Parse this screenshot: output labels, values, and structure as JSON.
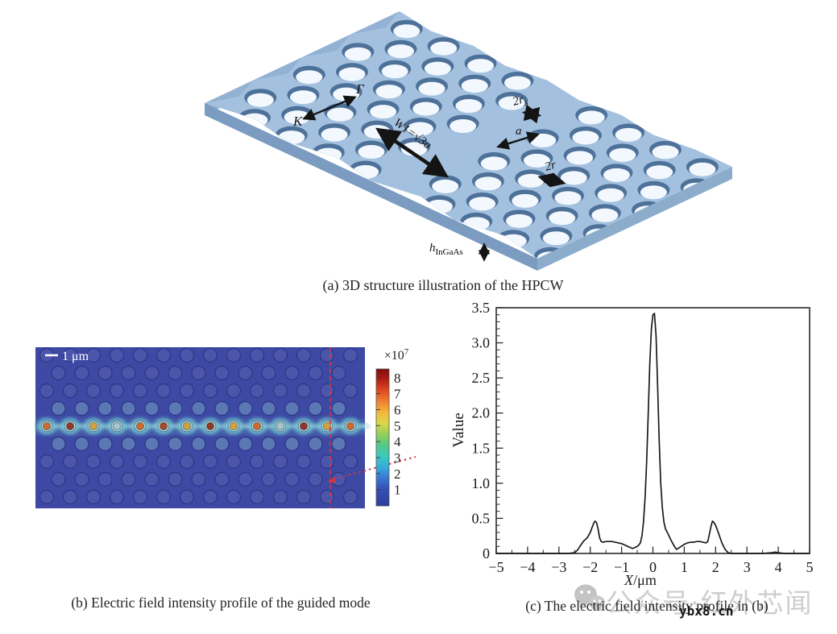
{
  "figure": {
    "panel_a": {
      "caption": "(a) 3D structure illustration of the HPCW",
      "slab_color": "#a3c1df",
      "labels": {
        "k": "K",
        "gamma": "Γ",
        "w1": "W1=√3a",
        "rs_main": "2r",
        "rs_sub": "s",
        "a": "a",
        "two_r": "2r",
        "h_main": "h",
        "h_sub": "InGaAs"
      }
    },
    "panel_b": {
      "caption": "(b) Electric field intensity profile of the guided mode",
      "scalebar_label": "1 μm",
      "colorbar": {
        "multiplier_base": "×10",
        "multiplier_exp": "7",
        "ticks": [
          "8",
          "7",
          "6",
          "5",
          "4",
          "3",
          "2",
          "1"
        ]
      }
    },
    "panel_c": {
      "caption": "(c) The electric field intensity profile in (b)"
    }
  },
  "watermark": {
    "account_text": "公众号·红外芯闻",
    "site_text": "ybx8.cn"
  },
  "chart_data": {
    "type": "line",
    "title": "",
    "xlabel_italic": "X",
    "xlabel_rest": "/μm",
    "ylabel": "Value",
    "xlim": [
      -5,
      5
    ],
    "ylim": [
      0,
      3.5
    ],
    "x_tick_values": [
      -5,
      -4,
      -3,
      -2,
      -1,
      0,
      1,
      2,
      3,
      4,
      5
    ],
    "x_tick_labels": [
      "−5",
      "−4",
      "−3",
      "−2",
      "−1",
      "0",
      "1",
      "2",
      "3",
      "4",
      "5"
    ],
    "x_minor_step": 0.5,
    "y_tick_values": [
      0,
      0.5,
      1,
      1.5,
      2,
      2.5,
      3,
      3.5
    ],
    "y_tick_labels": [
      "0",
      "0.5",
      "1.0",
      "1.5",
      "2.0",
      "2.5",
      "3.0",
      "3.5"
    ],
    "y_minor_step": 0.1,
    "grid": false,
    "legend": false,
    "series": [
      {
        "name": "electric field intensity profile",
        "color": "#1a1a1a",
        "points": [
          [
            -5,
            0
          ],
          [
            -4.5,
            0
          ],
          [
            -4,
            0
          ],
          [
            -3.5,
            0
          ],
          [
            -3,
            0
          ],
          [
            -2.7,
            0
          ],
          [
            -2.5,
            0.01
          ],
          [
            -2.4,
            0.05
          ],
          [
            -2.3,
            0.12
          ],
          [
            -2.2,
            0.18
          ],
          [
            -2.1,
            0.22
          ],
          [
            -2,
            0.3
          ],
          [
            -1.9,
            0.42
          ],
          [
            -1.85,
            0.46
          ],
          [
            -1.8,
            0.44
          ],
          [
            -1.75,
            0.35
          ],
          [
            -1.7,
            0.22
          ],
          [
            -1.65,
            0.17
          ],
          [
            -1.6,
            0.16
          ],
          [
            -1.5,
            0.17
          ],
          [
            -1.4,
            0.17
          ],
          [
            -1.3,
            0.17
          ],
          [
            -1.2,
            0.16
          ],
          [
            -1.1,
            0.15
          ],
          [
            -1,
            0.14
          ],
          [
            -0.9,
            0.12
          ],
          [
            -0.8,
            0.1
          ],
          [
            -0.7,
            0.08
          ],
          [
            -0.65,
            0.07
          ],
          [
            -0.6,
            0.08
          ],
          [
            -0.5,
            0.1
          ],
          [
            -0.45,
            0.12
          ],
          [
            -0.4,
            0.15
          ],
          [
            -0.35,
            0.25
          ],
          [
            -0.3,
            0.45
          ],
          [
            -0.25,
            0.8
          ],
          [
            -0.2,
            1.3
          ],
          [
            -0.15,
            2
          ],
          [
            -0.1,
            2.7
          ],
          [
            -0.05,
            3.2
          ],
          [
            0,
            3.4
          ],
          [
            0.05,
            3.42
          ],
          [
            0.1,
            3.1
          ],
          [
            0.15,
            2.4
          ],
          [
            0.2,
            1.6
          ],
          [
            0.25,
            1
          ],
          [
            0.3,
            0.65
          ],
          [
            0.35,
            0.45
          ],
          [
            0.4,
            0.35
          ],
          [
            0.5,
            0.26
          ],
          [
            0.6,
            0.17
          ],
          [
            0.7,
            0.09
          ],
          [
            0.75,
            0.06
          ],
          [
            0.8,
            0.07
          ],
          [
            0.9,
            0.1
          ],
          [
            1,
            0.13
          ],
          [
            1.1,
            0.15
          ],
          [
            1.2,
            0.16
          ],
          [
            1.3,
            0.16
          ],
          [
            1.4,
            0.17
          ],
          [
            1.5,
            0.17
          ],
          [
            1.6,
            0.16
          ],
          [
            1.7,
            0.15
          ],
          [
            1.75,
            0.17
          ],
          [
            1.8,
            0.27
          ],
          [
            1.85,
            0.38
          ],
          [
            1.9,
            0.46
          ],
          [
            1.95,
            0.44
          ],
          [
            2,
            0.4
          ],
          [
            2.1,
            0.28
          ],
          [
            2.2,
            0.15
          ],
          [
            2.3,
            0.06
          ],
          [
            2.4,
            0.01
          ],
          [
            2.5,
            0
          ],
          [
            3,
            0
          ],
          [
            3.5,
            0
          ],
          [
            3.8,
            0.01
          ],
          [
            3.9,
            0.02
          ],
          [
            4,
            0.01
          ],
          [
            4.2,
            0
          ],
          [
            4.5,
            0
          ],
          [
            5,
            0
          ]
        ]
      }
    ]
  }
}
